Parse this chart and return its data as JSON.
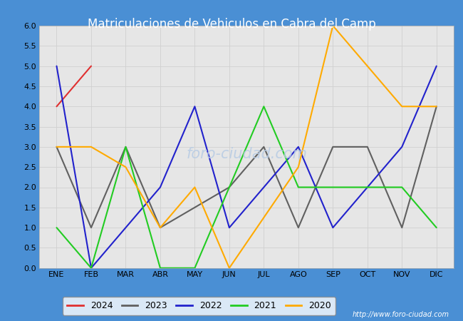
{
  "title": "Matriculaciones de Vehiculos en Cabra del Camp",
  "title_color": "white",
  "title_bg_color": "#4a8fd4",
  "months": [
    "ENE",
    "FEB",
    "MAR",
    "ABR",
    "MAY",
    "JUN",
    "JUL",
    "AGO",
    "SEP",
    "OCT",
    "NOV",
    "DIC"
  ],
  "series": [
    {
      "year": "2024",
      "color": "#e03030",
      "values": [
        4.0,
        5.0,
        null,
        null,
        null,
        null,
        null,
        null,
        null,
        null,
        null,
        null
      ]
    },
    {
      "year": "2023",
      "color": "#606060",
      "values": [
        3.0,
        1.0,
        3.0,
        1.0,
        null,
        2.0,
        3.0,
        1.0,
        3.0,
        3.0,
        1.0,
        4.0
      ]
    },
    {
      "year": "2022",
      "color": "#2222cc",
      "values": [
        5.0,
        0.0,
        1.0,
        2.0,
        4.0,
        1.0,
        null,
        3.0,
        1.0,
        null,
        3.0,
        5.0
      ]
    },
    {
      "year": "2021",
      "color": "#22cc22",
      "values": [
        1.0,
        0.0,
        3.0,
        0.0,
        0.0,
        null,
        4.0,
        2.0,
        2.0,
        2.0,
        2.0,
        1.0
      ]
    },
    {
      "year": "2020",
      "color": "#ffaa00",
      "values": [
        3.0,
        3.0,
        2.5,
        1.0,
        2.0,
        0.0,
        null,
        2.5,
        6.0,
        null,
        4.0,
        4.0
      ]
    }
  ],
  "ylim": [
    0.0,
    6.0
  ],
  "yticks": [
    0.0,
    0.5,
    1.0,
    1.5,
    2.0,
    2.5,
    3.0,
    3.5,
    4.0,
    4.5,
    5.0,
    5.5,
    6.0
  ],
  "grid_color": "#d0d0d0",
  "plot_bg_color": "#e6e6e6",
  "watermark_text": "foro-ciudad.com",
  "watermark_color": "#b8cce4",
  "footer_url": "http://www.foro-ciudad.com",
  "line_width": 1.5,
  "title_fontsize": 12,
  "tick_fontsize": 8,
  "legend_fontsize": 9
}
